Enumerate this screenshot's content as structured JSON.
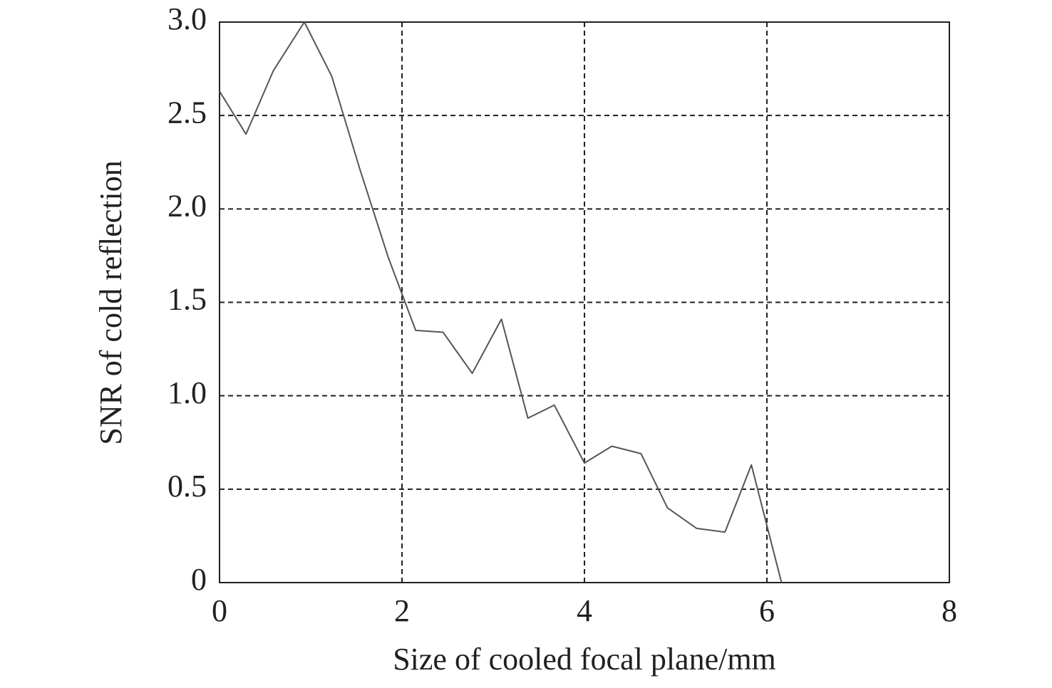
{
  "chart_data": {
    "type": "line",
    "x_label": "Size of cooled focal plane/mm",
    "y_label": "SNR of cold reflection",
    "xlim": [
      0,
      8
    ],
    "ylim": [
      0,
      3
    ],
    "xticks": [
      0,
      2,
      4,
      6,
      8
    ],
    "yticks": [
      0,
      0.5,
      {
        "value": 1,
        "label": "1.0"
      },
      1.5,
      {
        "value": 2,
        "label": "2.0"
      },
      2.5,
      {
        "value": 3,
        "label": "3.0"
      }
    ],
    "grid": true,
    "series": [
      {
        "color": "#555555",
        "x": [
          0,
          0.29,
          0.59,
          0.93,
          1.23,
          1.54,
          1.85,
          2.15,
          2.45,
          2.77,
          3.09,
          3.38,
          3.67,
          4.0,
          4.3,
          4.62,
          4.91,
          5.23,
          5.54,
          5.83,
          6.16
        ],
        "values": [
          2.63,
          2.4,
          2.74,
          3.0,
          2.71,
          2.21,
          1.74,
          1.35,
          1.34,
          1.12,
          1.41,
          0.88,
          0.95,
          0.64,
          0.73,
          0.69,
          0.4,
          0.29,
          0.27,
          0.63,
          0
        ]
      }
    ]
  }
}
